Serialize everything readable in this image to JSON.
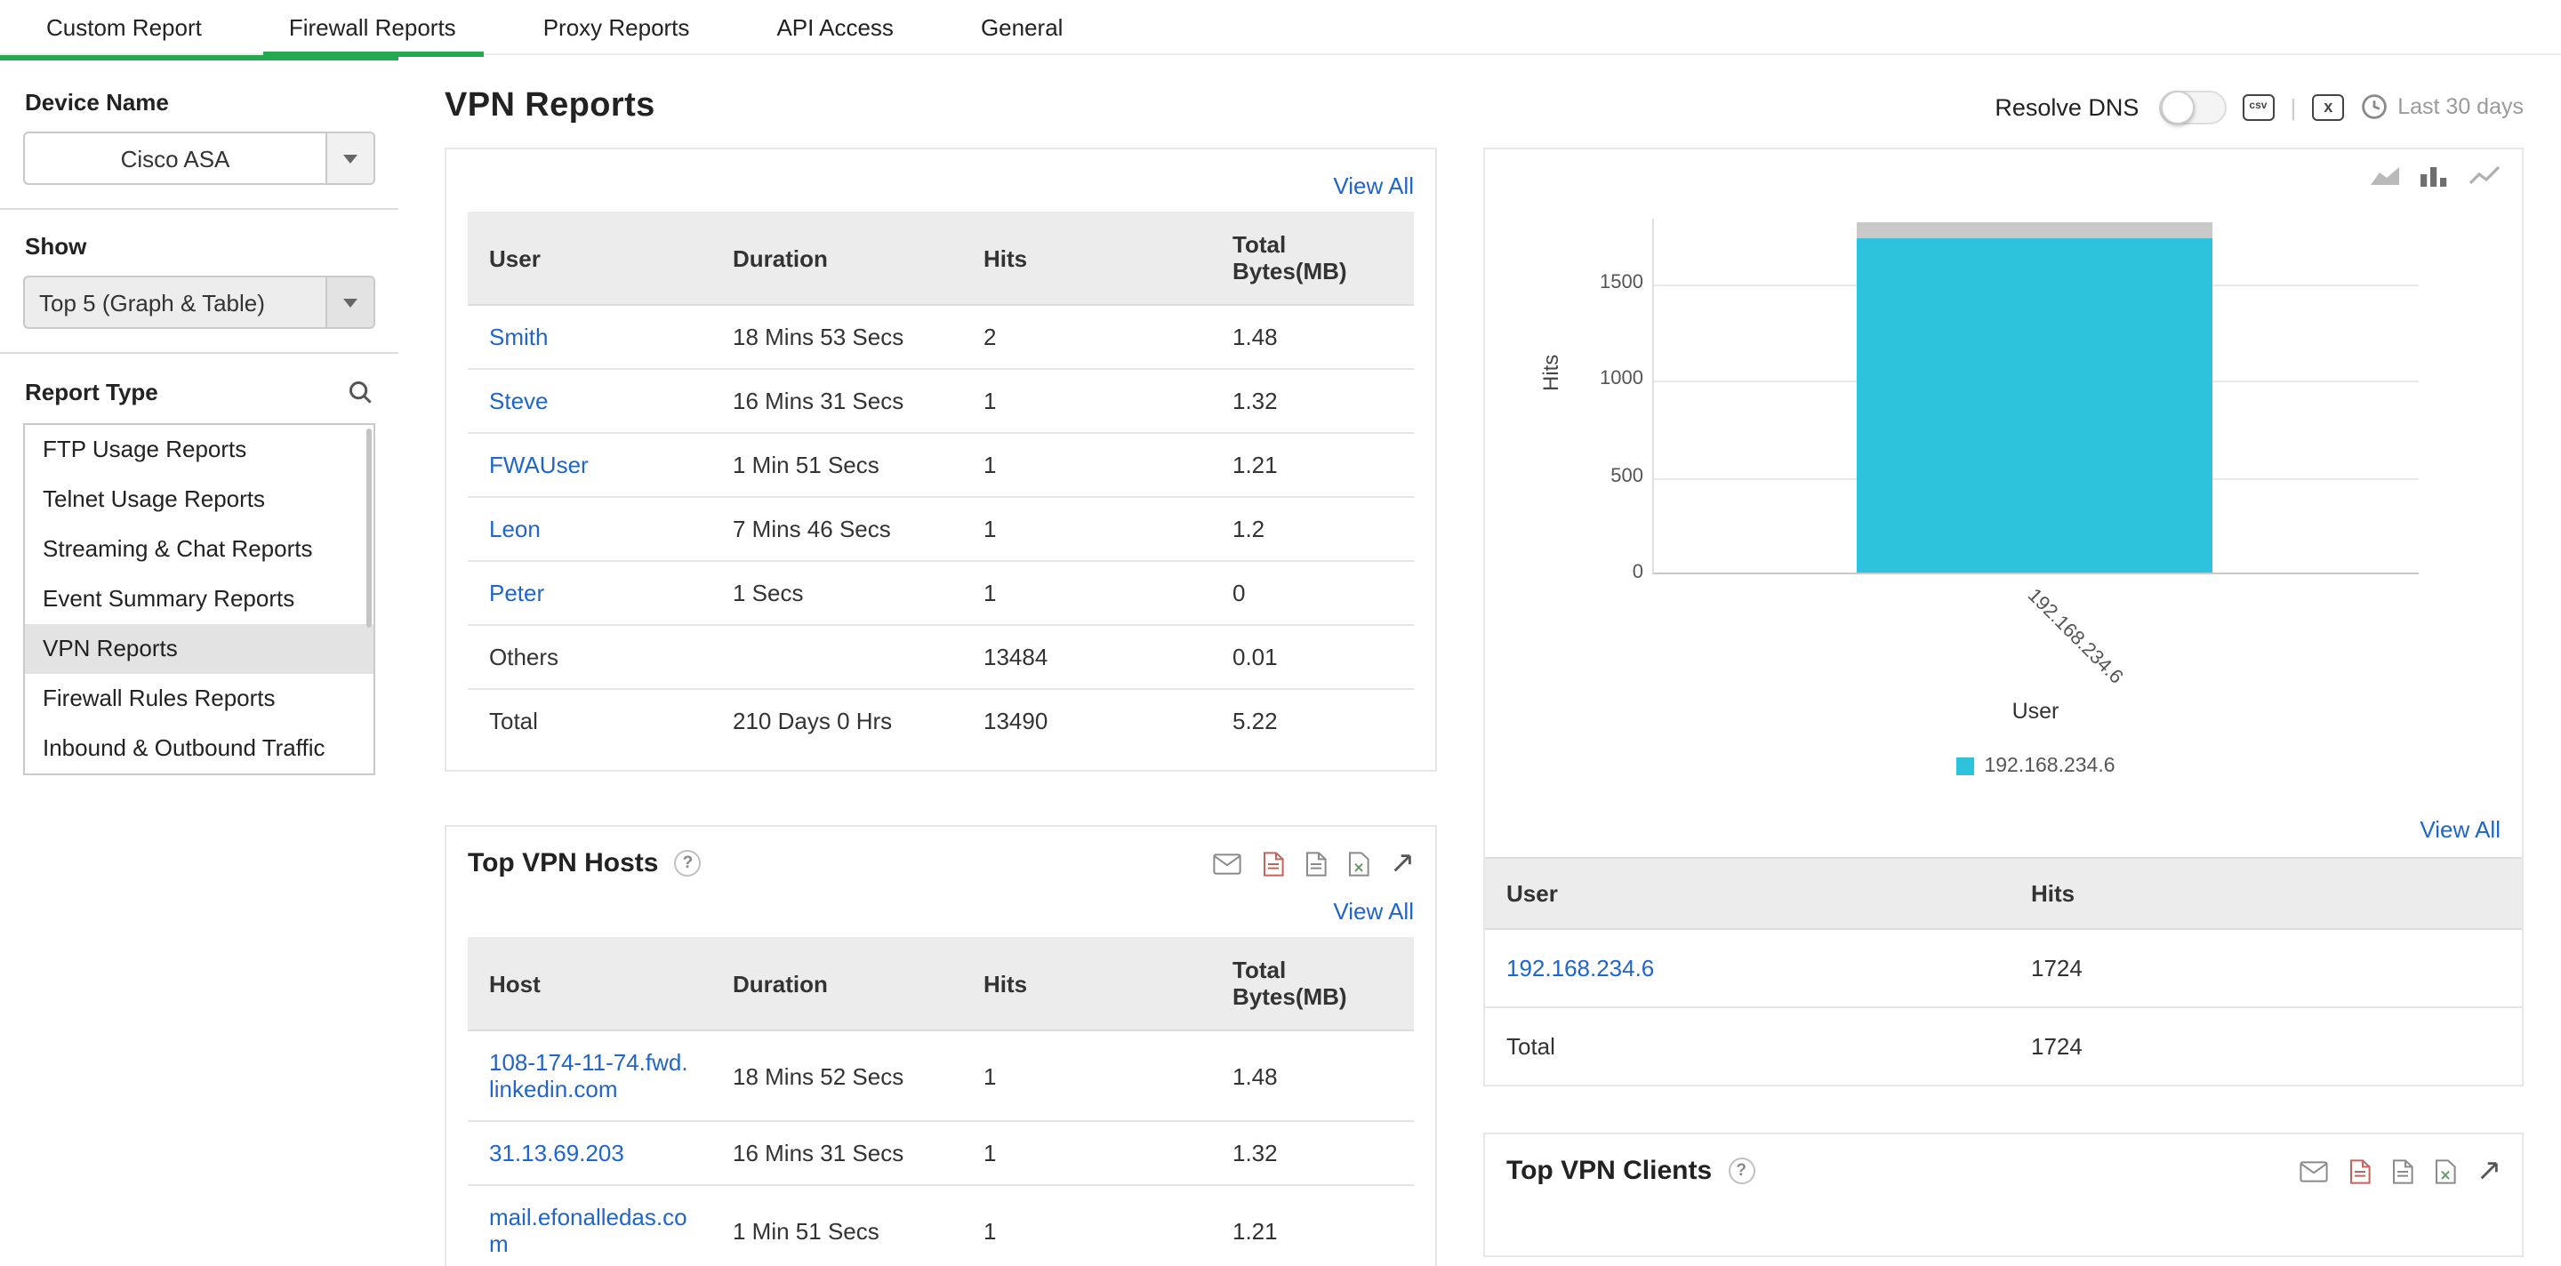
{
  "colors": {
    "accent_green": "#22a952",
    "link_blue": "#2065c9",
    "bar_cyan": "#2bc4dc",
    "table_header_bg": "#ececec"
  },
  "nav": {
    "tabs": [
      {
        "label": "Custom Report",
        "active": false
      },
      {
        "label": "Firewall Reports",
        "active": true
      },
      {
        "label": "Proxy Reports",
        "active": false
      },
      {
        "label": "API Access",
        "active": false
      },
      {
        "label": "General",
        "active": false
      }
    ]
  },
  "sidebar": {
    "device_label": "Device Name",
    "device_value": "Cisco ASA",
    "show_label": "Show",
    "show_value": "Top 5 (Graph & Table)",
    "report_type_label": "Report Type",
    "report_types": [
      "FTP Usage Reports",
      "Telnet Usage Reports",
      "Streaming & Chat Reports",
      "Event Summary Reports",
      "VPN Reports",
      "Firewall Rules Reports",
      "Inbound & Outbound Traffic"
    ],
    "selected_report": "VPN Reports"
  },
  "header": {
    "title": "VPN Reports",
    "resolve_dns_label": "Resolve DNS",
    "csv_icon_label": "csv",
    "excel_icon_label": "x",
    "period_label": "Last 30 days"
  },
  "users_section": {
    "view_all": "View All",
    "columns": [
      "User",
      "Duration",
      "Hits",
      "Total Bytes(MB)"
    ],
    "rows": [
      {
        "user": "Smith",
        "duration": "18 Mins 53 Secs",
        "hits": "2",
        "bytes": "1.48",
        "link": true
      },
      {
        "user": "Steve",
        "duration": "16 Mins 31 Secs",
        "hits": "1",
        "bytes": "1.32",
        "link": true
      },
      {
        "user": "FWAUser",
        "duration": "1 Min 51 Secs",
        "hits": "1",
        "bytes": "1.21",
        "link": true
      },
      {
        "user": "Leon",
        "duration": "7 Mins 46 Secs",
        "hits": "1",
        "bytes": "1.2",
        "link": true
      },
      {
        "user": "Peter",
        "duration": "1 Secs",
        "hits": "1",
        "bytes": "0",
        "link": true
      },
      {
        "user": "Others",
        "duration": "",
        "hits": "13484",
        "bytes": "0.01",
        "link": false
      },
      {
        "user": "Total",
        "duration": "210 Days 0 Hrs",
        "hits": "13490",
        "bytes": "5.22",
        "link": false
      }
    ]
  },
  "hosts_section": {
    "title": "Top VPN Hosts",
    "help": "?",
    "view_all": "View All",
    "icons": [
      "email-icon",
      "pdf-icon",
      "report-icon",
      "excel-icon",
      "expand-icon"
    ],
    "columns": [
      "Host",
      "Duration",
      "Hits",
      "Total Bytes(MB)"
    ],
    "rows": [
      {
        "host": "108-174-11-74.fwd.linkedin.com",
        "duration": "18 Mins 52 Secs",
        "hits": "1",
        "bytes": "1.48",
        "link": true
      },
      {
        "host": "31.13.69.203",
        "duration": "16 Mins 31 Secs",
        "hits": "1",
        "bytes": "1.32",
        "link": true
      },
      {
        "host": "mail.efonalledas.com",
        "duration": "1 Min 51 Secs",
        "hits": "1",
        "bytes": "1.21",
        "link": true
      }
    ]
  },
  "chart_section": {
    "icons": [
      "area-chart-icon",
      "bar-chart-icon",
      "line-chart-icon"
    ],
    "view_all": "View All",
    "table": {
      "columns": [
        "User",
        "Hits"
      ],
      "rows": [
        {
          "user": "192.168.234.6",
          "hits": "1724",
          "link": true
        },
        {
          "user": "Total",
          "hits": "1724",
          "link": false
        }
      ]
    }
  },
  "chart_data": {
    "type": "bar",
    "categories": [
      "192.168.234.6"
    ],
    "values": [
      1724
    ],
    "title": "",
    "xlabel": "User",
    "ylabel": "Hits",
    "y_ticks": [
      0,
      500,
      1000,
      1500
    ],
    "ylim": [
      0,
      1850
    ],
    "grid": true,
    "legend": [
      "192.168.234.6"
    ],
    "legend_position": "bottom",
    "bar_color": "#2bc4dc"
  },
  "clients_section": {
    "title": "Top VPN Clients",
    "help": "?",
    "icons": [
      "email-icon",
      "pdf-icon",
      "report-icon",
      "excel-icon",
      "expand-icon"
    ]
  }
}
